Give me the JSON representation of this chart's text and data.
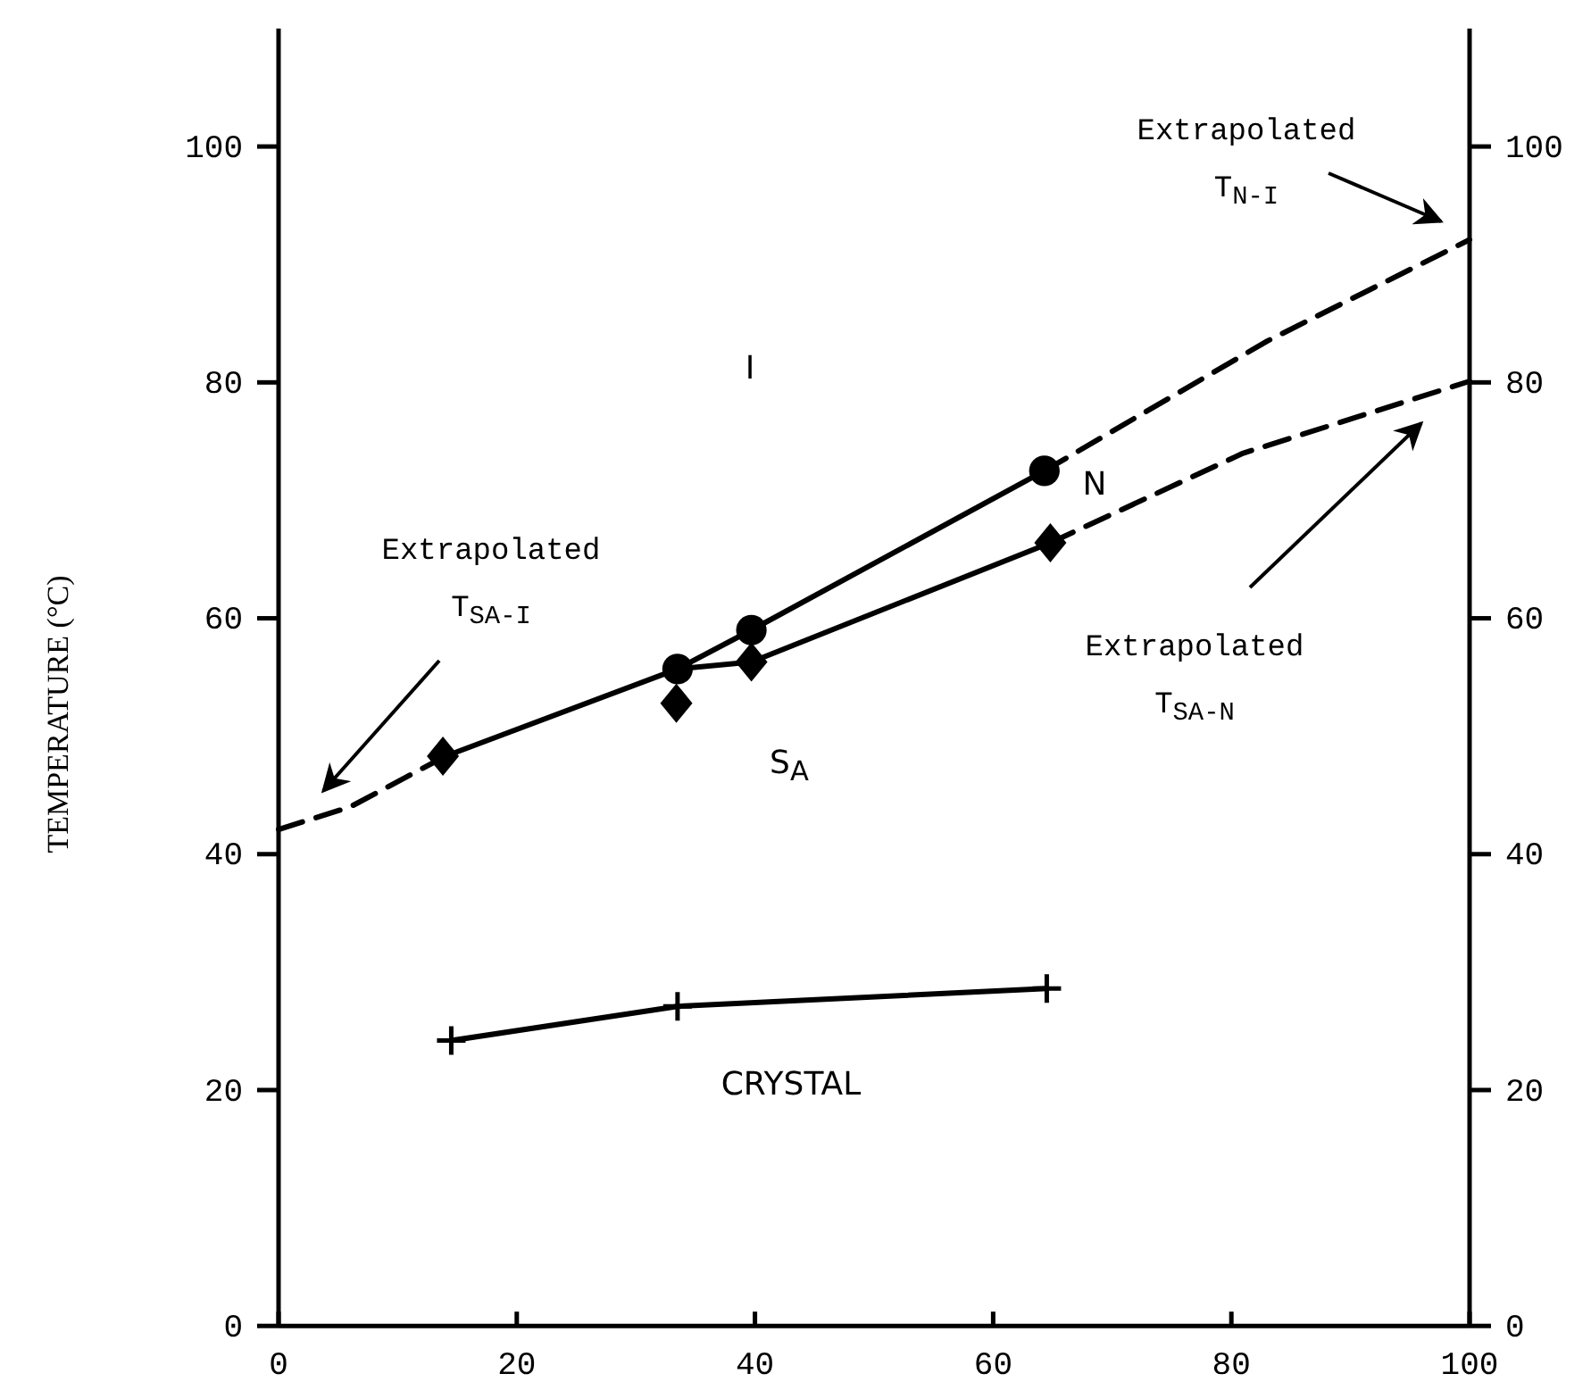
{
  "chart_data": {
    "type": "line",
    "ylabel": "TEMPERATURE (°C)",
    "xlim": [
      0,
      100
    ],
    "xticks": [
      0,
      20,
      40,
      60,
      80,
      100
    ],
    "ylim": [
      0,
      110
    ],
    "yticks": [
      0,
      20,
      40,
      60,
      80,
      100
    ],
    "y2lim": [
      0,
      110
    ],
    "y2ticks": [
      0,
      20,
      40,
      60,
      80,
      100
    ],
    "grid": false,
    "series": [
      {
        "color": "#000000",
        "marker": "circle",
        "line_style": "solid",
        "x": [
          33.5,
          39.7,
          64.3
        ],
        "values": [
          55.7,
          59.0,
          72.5
        ]
      },
      {
        "color": "#000000",
        "line_style": "solid",
        "x": [
          14,
          33.5,
          39.7,
          64.8
        ],
        "values": [
          48.3,
          55.7,
          56.3,
          66.4
        ]
      },
      {
        "type": "scatter",
        "color": "#000000",
        "marker": "diamond",
        "x": [
          13.8,
          33.4,
          39.7,
          64.8
        ],
        "values": [
          48.3,
          52.8,
          56.3,
          66.4
        ]
      },
      {
        "color": "#000000",
        "marker": "cross",
        "line_style": "solid",
        "x": [
          14.5,
          33.5,
          64.5
        ],
        "values": [
          24.2,
          27.1,
          28.6
        ]
      },
      {
        "color": "#000000",
        "line_style": "dashed",
        "x": [
          64.3,
          83,
          100
        ],
        "values": [
          72.5,
          83.5,
          92.1
        ]
      },
      {
        "color": "#000000",
        "line_style": "dashed",
        "x": [
          64.8,
          81,
          100
        ],
        "values": [
          66.4,
          74.0,
          80.1
        ]
      },
      {
        "color": "#000000",
        "line_style": "dashed",
        "x": [
          0,
          6,
          14
        ],
        "values": [
          42.1,
          44.0,
          48.3
        ]
      }
    ],
    "annotations": [
      "I",
      "N",
      "S$_{A}$",
      "CRYSTAL",
      "Extrapolated T$_{N-I}$",
      "Extrapolated T$_{SA-I}$",
      "Extrapolated T$_{SA-N}$"
    ]
  }
}
